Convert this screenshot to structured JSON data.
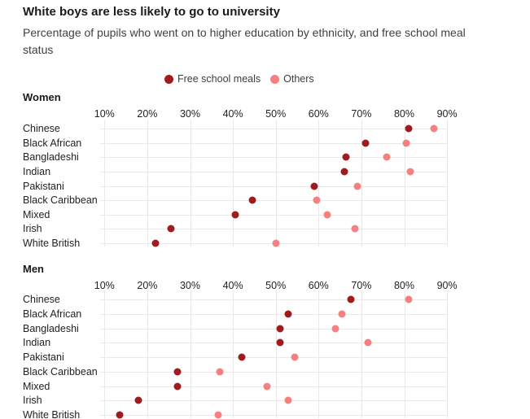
{
  "header": {
    "title": "White boys are less likely to go to university",
    "subtitle": "Percentage of pupils who went on to higher education by ethnicity, and free school meal status"
  },
  "legend": {
    "items": [
      {
        "label": "Free school meals",
        "color": "#9e1b1e"
      },
      {
        "label": "Others",
        "color": "#f5807f"
      }
    ]
  },
  "colors": {
    "free_school_meals": "#9e1b1e",
    "others": "#f5807f",
    "grid": "#e9e9e9",
    "title_text": "#1a1a1a",
    "body_text": "#404040",
    "label_text": "#222222",
    "background": "#ffffff"
  },
  "chart_data": {
    "type": "scatter",
    "title": "White boys are less likely to go to university",
    "subtitle": "Percentage of pupils who went on to higher education by ethnicity, and free school meal status",
    "legend_position": "top",
    "grid": true,
    "x_axis": {
      "unit": "%",
      "min": 10,
      "max": 90,
      "tick_values": [
        10,
        20,
        30,
        40,
        50,
        60,
        70,
        80,
        90
      ],
      "tick_labels": [
        "10%",
        "20%",
        "30%",
        "40%",
        "50%",
        "60%",
        "70%",
        "80%",
        "90%"
      ]
    },
    "categories": [
      "Chinese",
      "Black African",
      "Bangladeshi",
      "Indian",
      "Pakistani",
      "Black Caribbean",
      "Mixed",
      "Irish",
      "White British"
    ],
    "panels": [
      {
        "label": "Women",
        "series": [
          {
            "name": "Free school meals",
            "values": [
              81,
              71,
              66.5,
              66,
              59,
              44.5,
              40.5,
              25.5,
              22
            ]
          },
          {
            "name": "Others",
            "values": [
              87,
              80.5,
              76,
              81.5,
              69,
              59.5,
              62,
              68.5,
              50
            ]
          }
        ]
      },
      {
        "label": "Men",
        "series": [
          {
            "name": "Free school meals",
            "values": [
              67.5,
              53,
              51,
              51,
              42,
              27,
              27,
              18,
              13.5
            ]
          },
          {
            "name": "Others",
            "values": [
              81,
              65.5,
              64,
              71.5,
              54.5,
              37,
              48,
              53,
              36.5
            ]
          }
        ]
      }
    ]
  }
}
